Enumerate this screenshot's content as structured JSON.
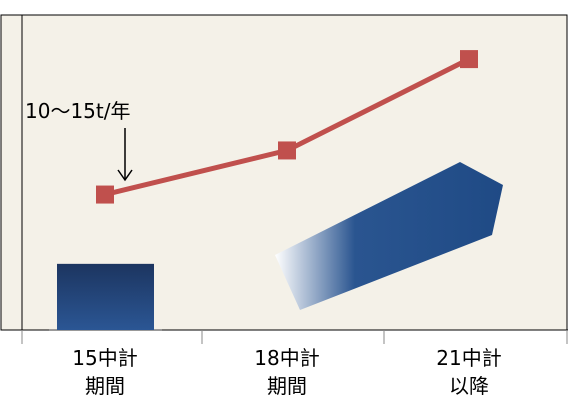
{
  "chart_data": {
    "type": "line",
    "categories": [
      "15中計\n期間",
      "18中計\n期間",
      "21中計\n以降"
    ],
    "series": [
      {
        "type": "bar",
        "color": "#1f3e6e",
        "values": [
          21,
          null,
          null
        ]
      },
      {
        "type": "line",
        "color": "#c0504d",
        "values": [
          43,
          57,
          86
        ]
      }
    ],
    "ylim": [
      0,
      100
    ],
    "annotation": "10〜15t/年"
  }
}
